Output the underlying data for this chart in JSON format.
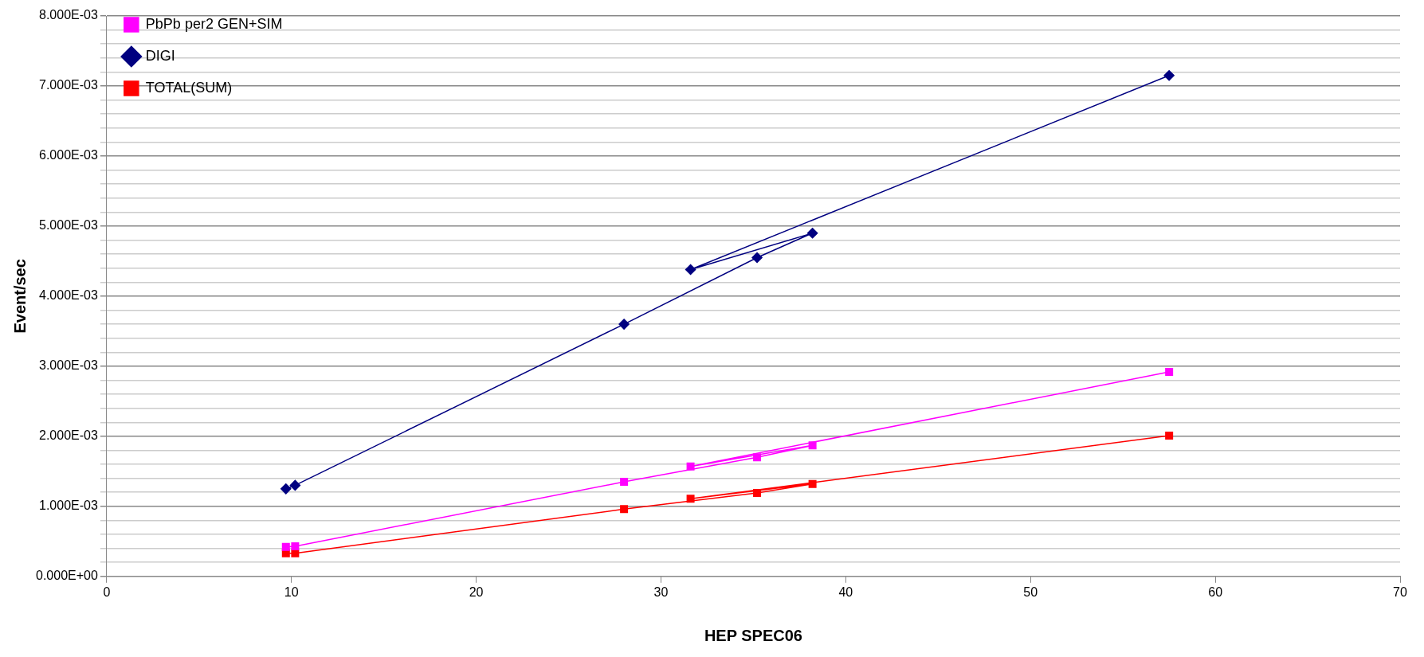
{
  "chart_data": {
    "type": "line",
    "xlabel": "HEP SPEC06",
    "ylabel": "Event/sec",
    "x": [
      9.7,
      10.2,
      28,
      35.2,
      38.2,
      31.6,
      57.5
    ],
    "series": [
      {
        "name": "PbPb per2 GEN+SIM",
        "color": "#ff00ff",
        "marker": "square",
        "values": [
          0.00042,
          0.00043,
          0.00135,
          0.0017,
          0.00187,
          0.00157,
          0.00292
        ]
      },
      {
        "name": "DIGI",
        "color": "#000080",
        "marker": "diamond",
        "values": [
          0.00125,
          0.0013,
          0.0036,
          0.00455,
          0.0049,
          0.00438,
          0.00715
        ]
      },
      {
        "name": "TOTAL(SUM)",
        "color": "#ff0000",
        "marker": "square",
        "values": [
          0.00033,
          0.00033,
          0.00096,
          0.00119,
          0.00132,
          0.00111,
          0.00201
        ]
      }
    ],
    "xlim": [
      0,
      70
    ],
    "xticks": [
      0,
      10,
      20,
      30,
      40,
      50,
      60,
      70
    ],
    "ylim": [
      0,
      0.008
    ],
    "yticks": [
      {
        "value": 0,
        "label": "0.000E+00"
      },
      {
        "value": 0.0002,
        "label": null
      },
      {
        "value": 0.0004,
        "label": null
      },
      {
        "value": 0.0006,
        "label": null
      },
      {
        "value": 0.0008,
        "label": null
      },
      {
        "value": 0.001,
        "label": "1.000E-03"
      },
      {
        "value": 0.0012,
        "label": null
      },
      {
        "value": 0.0014,
        "label": null
      },
      {
        "value": 0.0016,
        "label": null
      },
      {
        "value": 0.0018,
        "label": null
      },
      {
        "value": 0.002,
        "label": "2.000E-03"
      },
      {
        "value": 0.0022,
        "label": null
      },
      {
        "value": 0.0024,
        "label": null
      },
      {
        "value": 0.0026,
        "label": null
      },
      {
        "value": 0.0028,
        "label": null
      },
      {
        "value": 0.003,
        "label": "3.000E-03"
      },
      {
        "value": 0.0032,
        "label": null
      },
      {
        "value": 0.0034,
        "label": null
      },
      {
        "value": 0.0036,
        "label": null
      },
      {
        "value": 0.0038,
        "label": null
      },
      {
        "value": 0.004,
        "label": "4.000E-03"
      },
      {
        "value": 0.0042,
        "label": null
      },
      {
        "value": 0.0044,
        "label": null
      },
      {
        "value": 0.0046,
        "label": null
      },
      {
        "value": 0.0048,
        "label": null
      },
      {
        "value": 0.005,
        "label": "5.000E-03"
      },
      {
        "value": 0.0052,
        "label": null
      },
      {
        "value": 0.0054,
        "label": null
      },
      {
        "value": 0.0056,
        "label": null
      },
      {
        "value": 0.0058,
        "label": null
      },
      {
        "value": 0.006,
        "label": "6.000E-03"
      },
      {
        "value": 0.0062,
        "label": null
      },
      {
        "value": 0.0064,
        "label": null
      },
      {
        "value": 0.0066,
        "label": null
      },
      {
        "value": 0.0068,
        "label": null
      },
      {
        "value": 0.007,
        "label": "7.000E-03"
      },
      {
        "value": 0.0072,
        "label": null
      },
      {
        "value": 0.0074,
        "label": null
      },
      {
        "value": 0.0076,
        "label": null
      },
      {
        "value": 0.0078,
        "label": null
      },
      {
        "value": 0.008,
        "label": "8.000E-03"
      }
    ],
    "grid": "y",
    "legend": "top left",
    "line_style": "solid"
  }
}
